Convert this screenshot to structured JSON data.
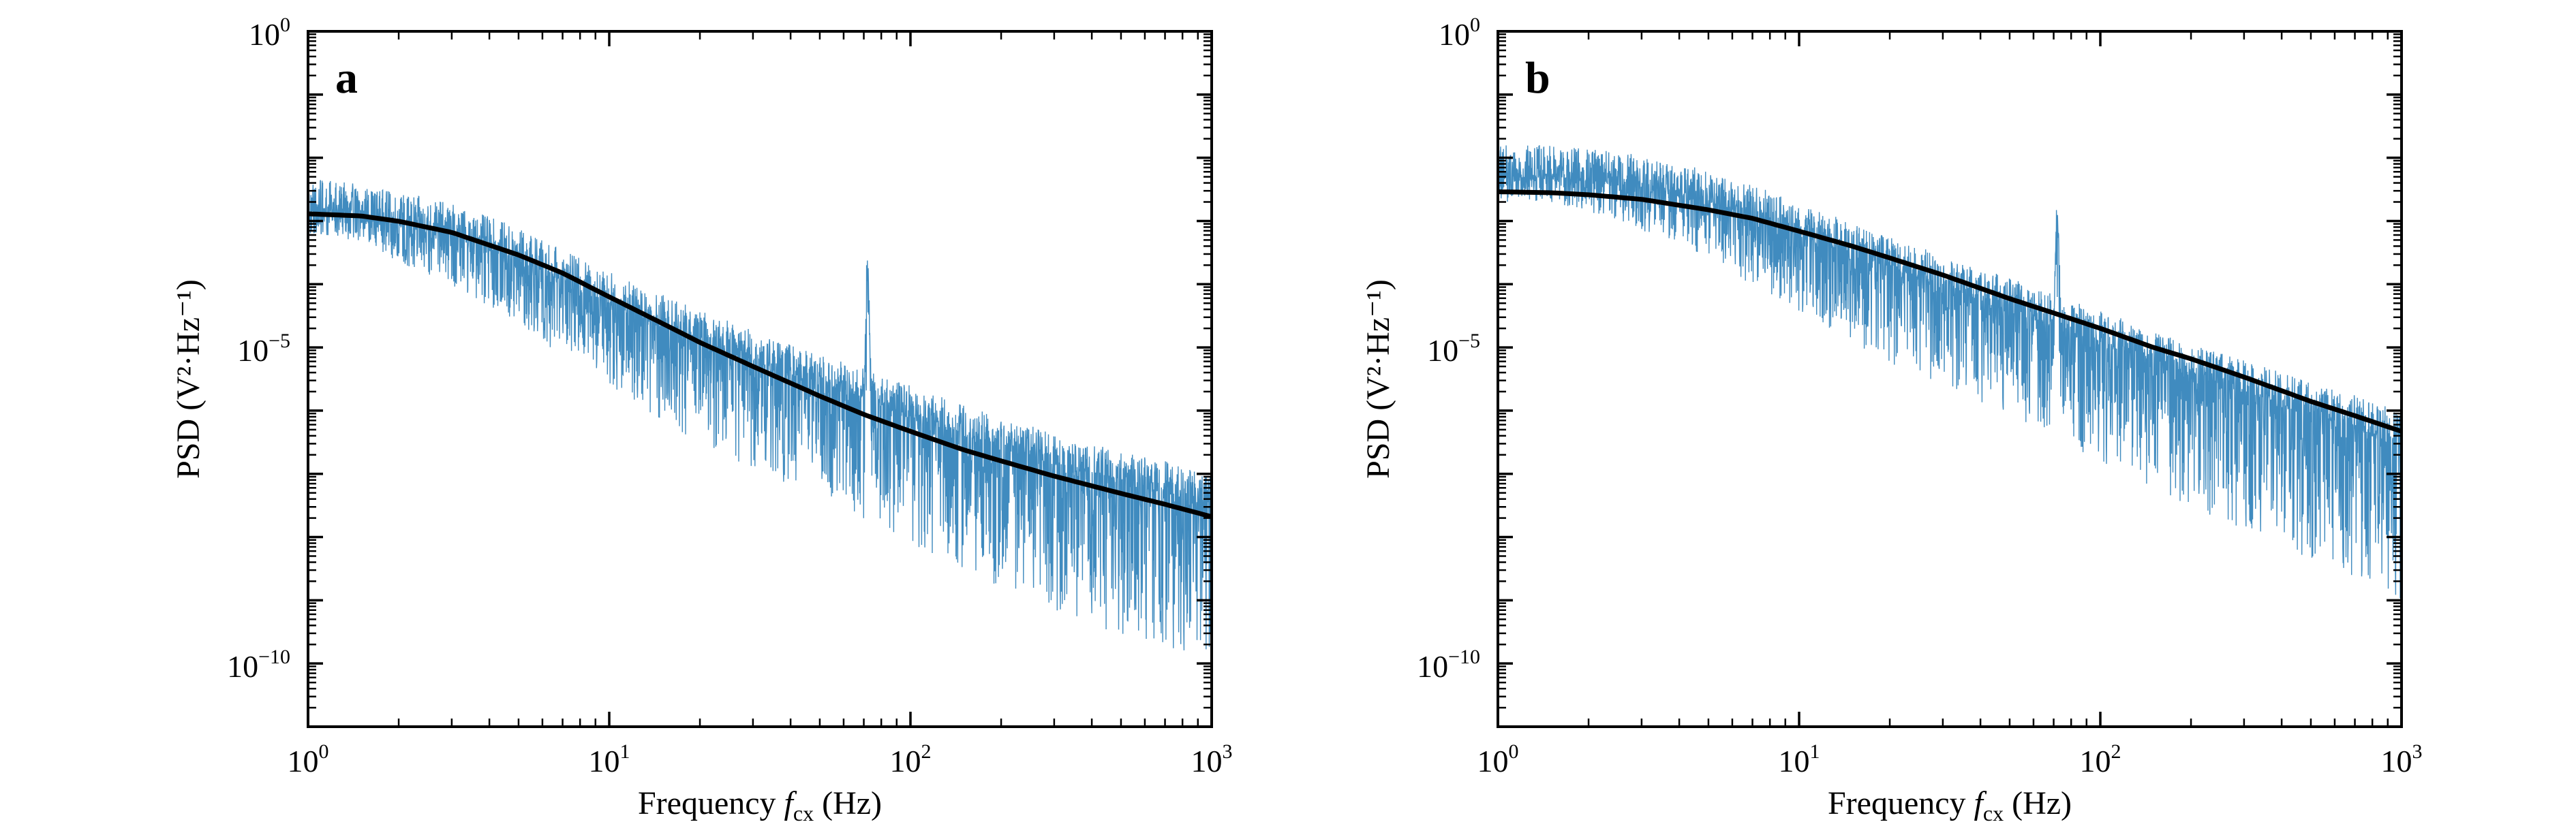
{
  "chart_data": [
    {
      "type": "line",
      "panel_label": "a",
      "x_scale": "log",
      "y_scale": "log",
      "xlim": [
        1,
        1000
      ],
      "ylim": [
        1e-11,
        1
      ],
      "xlabel": "Frequency f_cx (Hz)",
      "xlabel_main": "Frequency ",
      "xlabel_var": "f",
      "xlabel_sub": "cx",
      "xlabel_unit": " (Hz)",
      "ylabel": "PSD (V²·Hz⁻¹)",
      "xticks": [
        {
          "base": "10",
          "exp": "0"
        },
        {
          "base": "10",
          "exp": "1"
        },
        {
          "base": "10",
          "exp": "2"
        },
        {
          "base": "10",
          "exp": "3"
        }
      ],
      "yticks": [
        {
          "base": "10",
          "exp": "0"
        },
        {
          "base": "10",
          "exp": "−5"
        },
        {
          "base": "10",
          "exp": "−10"
        }
      ],
      "grid": false,
      "series": [
        {
          "kind": "measured-psd",
          "color": "#1f77b4",
          "x": [
            1.0,
            1.5,
            2.0,
            3.0,
            5.0,
            7.0,
            10,
            15,
            20,
            30,
            50,
            70,
            72,
            74,
            100,
            150,
            200,
            300,
            500,
            700,
            1000
          ],
          "y": [
            0.0015,
            0.0012,
            0.0009,
            0.0006,
            0.00025,
            0.00011,
            5e-05,
            2.2e-05,
            1.2e-05,
            6e-06,
            2.5e-06,
            1.5e-06,
            0.0003,
            1.4e-06,
            8e-07,
            4e-07,
            2.5e-07,
            1.4e-07,
            7e-08,
            5e-08,
            3e-08
          ],
          "spread_decades": {
            "low": [
              0.4,
              0.4,
              0.6,
              0.8,
              1.0,
              1.2,
              1.3,
              1.5,
              1.6,
              1.7,
              1.8,
              1.9,
              1.9,
              1.9,
              2.0,
              2.1,
              2.2,
              2.3,
              2.4,
              2.5,
              2.6
            ],
            "high": 0.5
          }
        },
        {
          "kind": "fit",
          "color": "#000000",
          "x": [
            1.0,
            1.5,
            2.0,
            3.0,
            5.0,
            7.0,
            10,
            15,
            20,
            30,
            50,
            70,
            100,
            150,
            200,
            300,
            500,
            700,
            1000
          ],
          "y": [
            0.0013,
            0.0012,
            0.00099,
            0.00066,
            0.00029,
            0.00015,
            6.3e-05,
            2.4e-05,
            1.2e-05,
            5e-06,
            1.7e-06,
            8.7e-07,
            4.7e-07,
            2.4e-07,
            1.6e-07,
            9.2e-08,
            4.9e-08,
            3.3e-08,
            2.1e-08
          ]
        }
      ]
    },
    {
      "type": "line",
      "panel_label": "b",
      "x_scale": "log",
      "y_scale": "log",
      "xlim": [
        1,
        1000
      ],
      "ylim": [
        1e-11,
        1
      ],
      "xlabel": "Frequency f_cx (Hz)",
      "xlabel_main": "Frequency ",
      "xlabel_var": "f",
      "xlabel_sub": "cx",
      "xlabel_unit": " (Hz)",
      "ylabel": "PSD (V²·Hz⁻¹)",
      "xticks": [
        {
          "base": "10",
          "exp": "0"
        },
        {
          "base": "10",
          "exp": "1"
        },
        {
          "base": "10",
          "exp": "2"
        },
        {
          "base": "10",
          "exp": "3"
        }
      ],
      "yticks": [
        {
          "base": "10",
          "exp": "0"
        },
        {
          "base": "10",
          "exp": "−5"
        },
        {
          "base": "10",
          "exp": "−10"
        }
      ],
      "grid": false,
      "series": [
        {
          "kind": "measured-psd",
          "color": "#1f77b4",
          "x": [
            1.0,
            1.5,
            2.0,
            2.5,
            3.0,
            5.0,
            7.0,
            10,
            15,
            20,
            30,
            50,
            70,
            72,
            74,
            100,
            150,
            200,
            300,
            500,
            700,
            1000
          ],
          "y": [
            0.005,
            0.005,
            0.0045,
            0.004,
            0.0035,
            0.002,
            0.0012,
            0.0006,
            0.0003,
            0.00018,
            9e-05,
            4e-05,
            2.2e-05,
            0.0015,
            2e-05,
            1.2e-05,
            6e-06,
            3.5e-06,
            2e-06,
            9e-07,
            5.5e-07,
            3e-07
          ],
          "spread_decades": {
            "low": [
              0.4,
              0.4,
              0.5,
              0.6,
              0.7,
              0.9,
              1.1,
              1.2,
              1.4,
              1.5,
              1.6,
              1.7,
              1.8,
              1.8,
              1.8,
              1.9,
              2.0,
              2.1,
              2.2,
              2.3,
              2.4,
              2.5
            ],
            "high": 0.5
          }
        },
        {
          "kind": "fit",
          "color": "#000000",
          "x": [
            1.0,
            1.5,
            2.0,
            3.0,
            5.0,
            7.0,
            10,
            15,
            20,
            30,
            50,
            70,
            100,
            150,
            200,
            300,
            500,
            700,
            1000
          ],
          "y": [
            0.0029,
            0.0028,
            0.0026,
            0.0022,
            0.0015,
            0.0011,
            0.00069,
            0.0004,
            0.00026,
            0.00014,
            5.9e-05,
            3.5e-05,
            2e-05,
            1e-05,
            6.6e-06,
            3.4e-06,
            1.4e-06,
            8.3e-07,
            4.7e-07
          ]
        }
      ]
    }
  ]
}
